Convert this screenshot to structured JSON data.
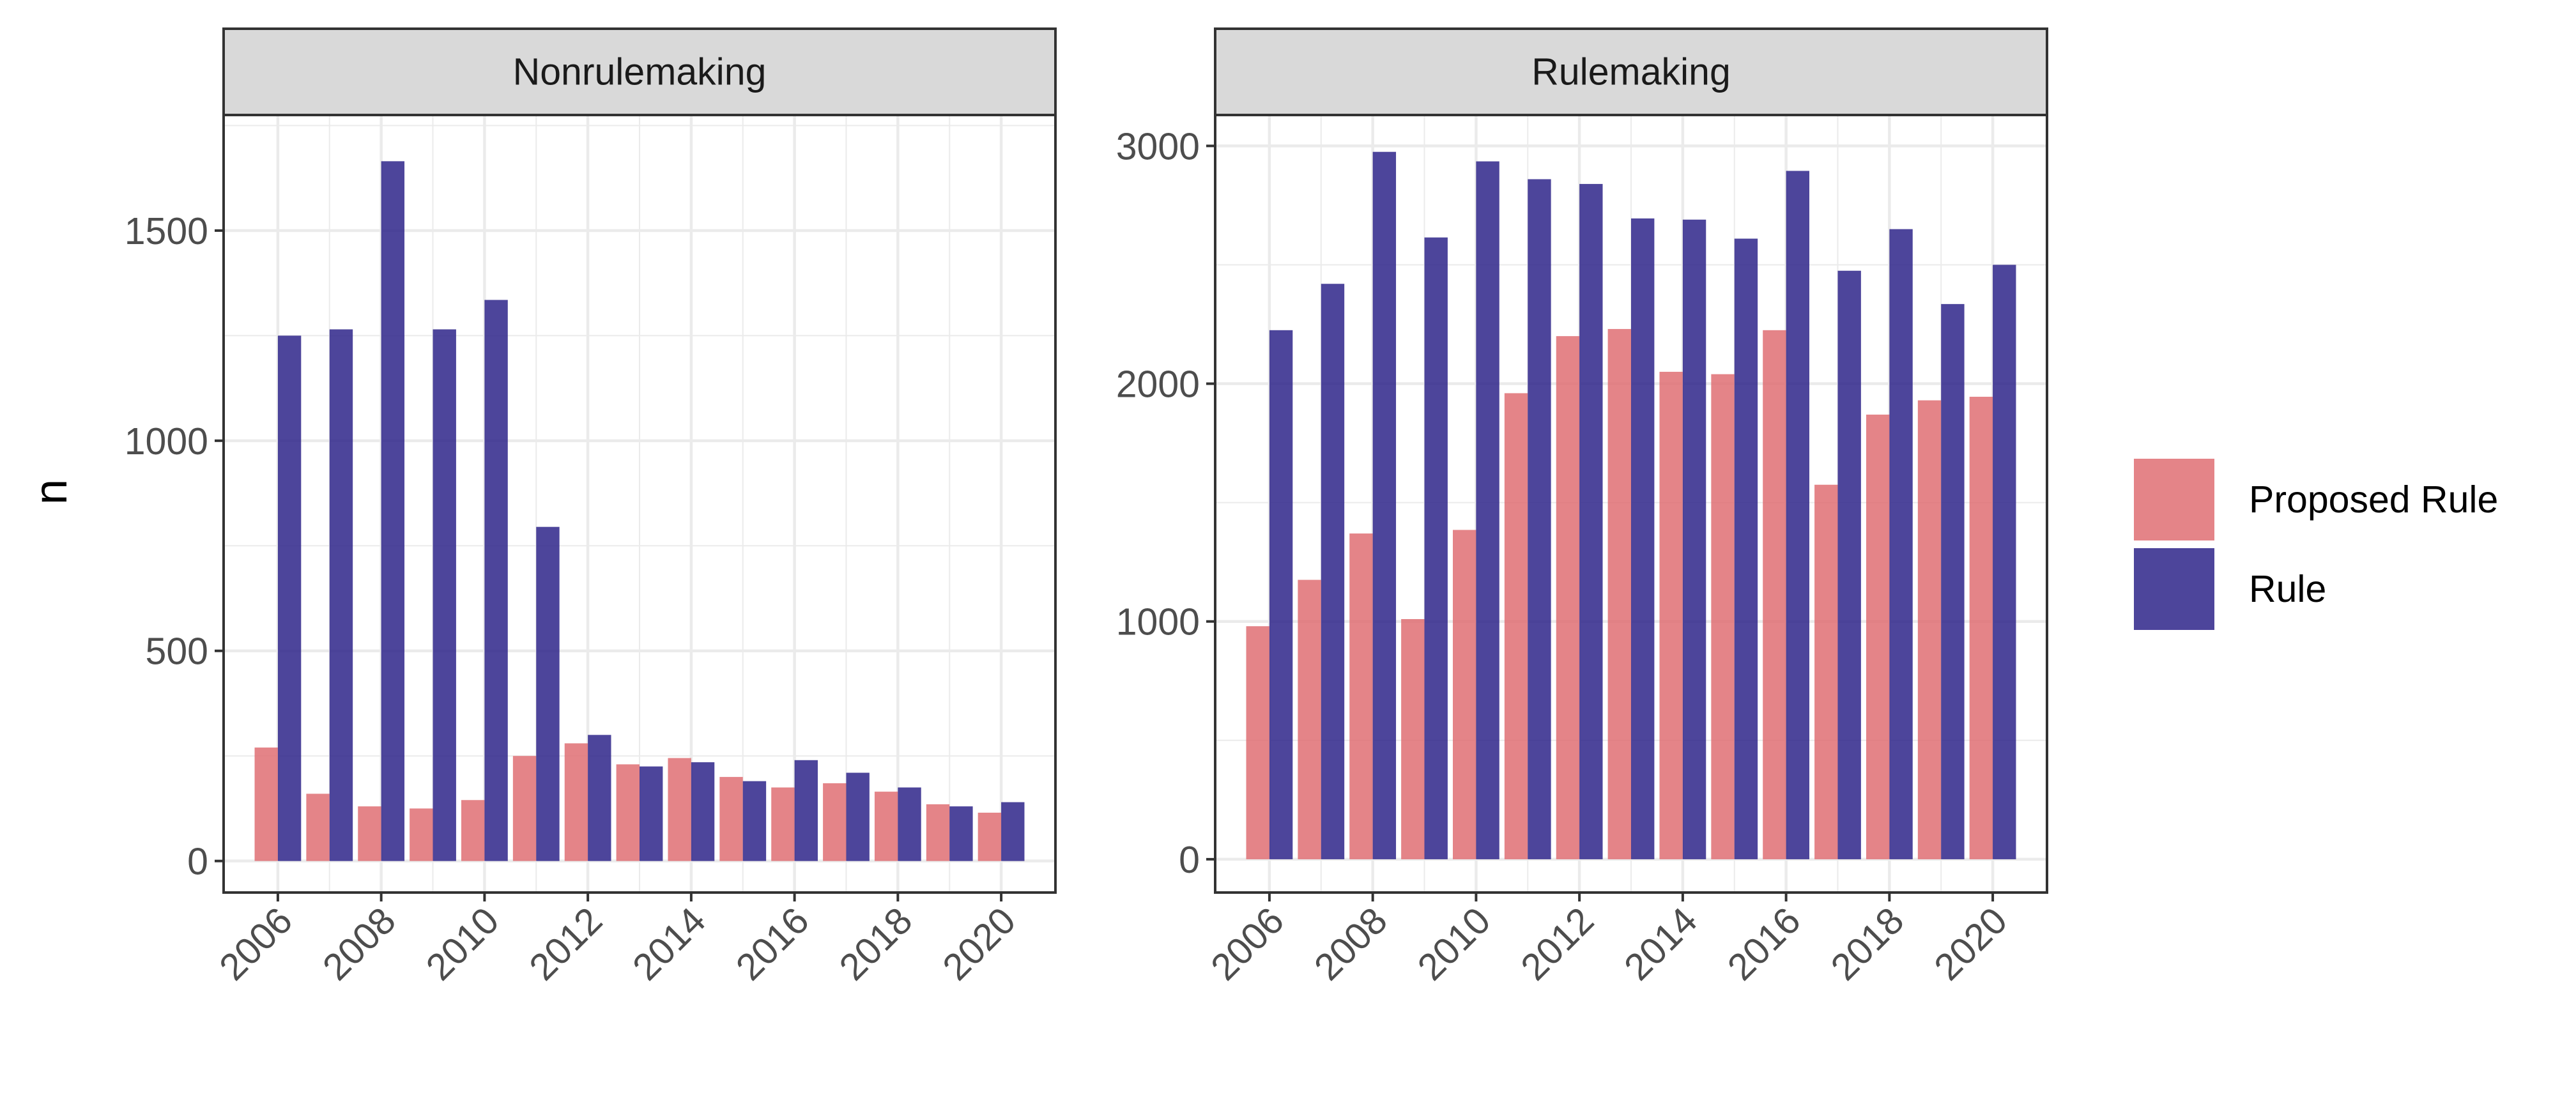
{
  "chart_data": [
    {
      "type": "bar",
      "title": "Nonrulemaking",
      "ylabel": "n",
      "xlabel": "",
      "x": [
        2006,
        2007,
        2008,
        2009,
        2010,
        2011,
        2012,
        2013,
        2014,
        2015,
        2016,
        2017,
        2018,
        2019,
        2020
      ],
      "x_ticks": [
        "2006",
        "2008",
        "2010",
        "2012",
        "2014",
        "2016",
        "2018",
        "2020"
      ],
      "y_ticks": [
        "0",
        "500",
        "1000",
        "1500"
      ],
      "ylim": [
        -75,
        1775
      ],
      "grid": true,
      "series": [
        {
          "name": "Proposed Rule",
          "values": [
            270,
            160,
            130,
            125,
            145,
            250,
            280,
            230,
            245,
            200,
            175,
            185,
            165,
            135,
            115
          ]
        },
        {
          "name": "Rule",
          "values": [
            1250,
            1265,
            1665,
            1265,
            1335,
            795,
            300,
            225,
            235,
            190,
            240,
            210,
            175,
            130,
            140
          ]
        }
      ]
    },
    {
      "type": "bar",
      "title": "Rulemaking",
      "ylabel": "",
      "xlabel": "",
      "x": [
        2006,
        2007,
        2008,
        2009,
        2010,
        2011,
        2012,
        2013,
        2014,
        2015,
        2016,
        2017,
        2018,
        2019,
        2020
      ],
      "x_ticks": [
        "2006",
        "2008",
        "2010",
        "2012",
        "2014",
        "2016",
        "2018",
        "2020"
      ],
      "y_ticks": [
        "0",
        "1000",
        "2000",
        "3000"
      ],
      "ylim": [
        -140,
        3130
      ],
      "grid": true,
      "series": [
        {
          "name": "Proposed Rule",
          "values": [
            980,
            1175,
            1370,
            1010,
            1385,
            1960,
            2200,
            2230,
            2050,
            2040,
            2225,
            1575,
            1870,
            1930,
            1945
          ]
        },
        {
          "name": "Rule",
          "values": [
            2225,
            2420,
            2975,
            2615,
            2935,
            2860,
            2840,
            2695,
            2690,
            2610,
            2895,
            2475,
            2650,
            2335,
            2500
          ]
        }
      ]
    }
  ],
  "legend": {
    "placement": "right",
    "items": [
      {
        "label": "Proposed Rule",
        "color": "#DF6F73"
      },
      {
        "label": "Rule",
        "color": "#2E2489"
      }
    ]
  },
  "colors": {
    "proposed_rule": "#DF6F73",
    "rule": "#2E2489",
    "strip": "#D9D9D9",
    "grid": "#EBEBEB"
  }
}
